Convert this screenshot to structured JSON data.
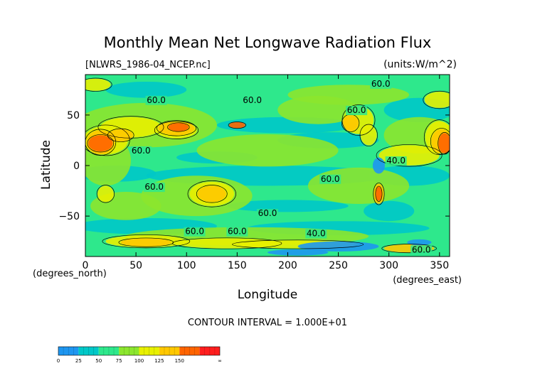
{
  "chart_data": {
    "type": "heatmap",
    "title": "Monthly Mean Net Longwave Radiation Flux",
    "subtitle_left": "[NLWRS_1986-04_NCEP.nc]",
    "subtitle_right": "(units:W/m^2)",
    "xlabel": "Longitude",
    "ylabel": "Latitude",
    "x_unit_label": "(degrees_east)",
    "y_unit_label": "(degrees_north)",
    "xlim": [
      0,
      360
    ],
    "ylim": [
      -90,
      90
    ],
    "x_ticks": [
      0,
      50,
      100,
      150,
      200,
      250,
      300,
      350
    ],
    "y_ticks": [
      -50,
      0,
      50
    ],
    "contour_interval_text": "CONTOUR INTERVAL = 1.000E+01",
    "contour_labels": [
      {
        "text": "60.0",
        "lon": 292,
        "lat": 78
      },
      {
        "text": "60.0",
        "lon": 70,
        "lat": 62
      },
      {
        "text": "60.0",
        "lon": 165,
        "lat": 62
      },
      {
        "text": "60.0",
        "lon": 268,
        "lat": 52
      },
      {
        "text": "60.0",
        "lon": 55,
        "lat": 12
      },
      {
        "text": "40.0",
        "lon": 307,
        "lat": 2
      },
      {
        "text": "60.0",
        "lon": 242,
        "lat": -16
      },
      {
        "text": "60.0",
        "lon": 68,
        "lat": -24
      },
      {
        "text": "60.0",
        "lon": 180,
        "lat": -50
      },
      {
        "text": "60.0",
        "lon": 108,
        "lat": -68
      },
      {
        "text": "60.0",
        "lon": 150,
        "lat": -68
      },
      {
        "text": "40.0",
        "lon": 228,
        "lat": -70
      },
      {
        "text": "60.0",
        "lon": 332,
        "lat": -86
      }
    ],
    "colorbar": {
      "tick_labels": [
        "0",
        "25",
        "50",
        "75",
        "100",
        "125",
        "150",
        "∞"
      ],
      "colors": [
        "#1e96f0",
        "#00c8c8",
        "#2ee88c",
        "#8ce62e",
        "#e8f000",
        "#ffc800",
        "#ff6400",
        "#ff1e1e"
      ]
    }
  }
}
